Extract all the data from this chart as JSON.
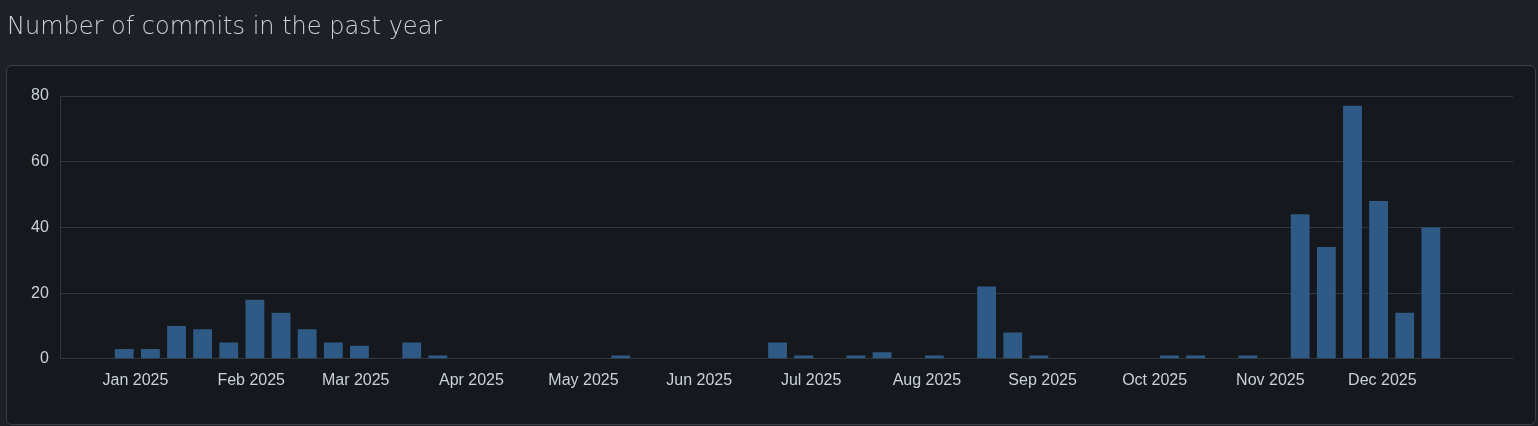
{
  "chart_data": {
    "type": "bar",
    "title": "Number of commits in the past year",
    "x": [
      "2024-12-29",
      "2025-01-05",
      "2025-01-12",
      "2025-01-19",
      "2025-01-26",
      "2025-02-02",
      "2025-02-09",
      "2025-02-16",
      "2025-02-23",
      "2025-03-02",
      "2025-03-09",
      "2025-03-16",
      "2025-03-23",
      "2025-03-30",
      "2025-04-06",
      "2025-04-13",
      "2025-04-20",
      "2025-04-27",
      "2025-05-04",
      "2025-05-11",
      "2025-05-18",
      "2025-05-25",
      "2025-06-01",
      "2025-06-08",
      "2025-06-15",
      "2025-06-22",
      "2025-06-29",
      "2025-07-06",
      "2025-07-13",
      "2025-07-20",
      "2025-07-27",
      "2025-08-03",
      "2025-08-10",
      "2025-08-17",
      "2025-08-24",
      "2025-08-31",
      "2025-09-07",
      "2025-09-14",
      "2025-09-21",
      "2025-09-28",
      "2025-10-05",
      "2025-10-12",
      "2025-10-19",
      "2025-10-26",
      "2025-11-02",
      "2025-11-09",
      "2025-11-16",
      "2025-11-23",
      "2025-11-30",
      "2025-12-07",
      "2025-12-14"
    ],
    "values": [
      3,
      3,
      10,
      9,
      5,
      18,
      14,
      9,
      5,
      4,
      0,
      5,
      1,
      0,
      0,
      0,
      0,
      0,
      0,
      1,
      0,
      0,
      0,
      0,
      0,
      5,
      1,
      0,
      1,
      2,
      0,
      1,
      0,
      22,
      8,
      1,
      0,
      0,
      0,
      0,
      1,
      1,
      0,
      1,
      0,
      44,
      34,
      77,
      48,
      14,
      40
    ],
    "color": "#2f5a85",
    "xlim": [
      "2024-12-12",
      "2026-01-05"
    ],
    "xticks": [
      {
        "value": "2025-01-01",
        "label": "Jan 2025"
      },
      {
        "value": "2025-02-01",
        "label": "Feb 2025"
      },
      {
        "value": "2025-03-01",
        "label": "Mar 2025"
      },
      {
        "value": "2025-04-01",
        "label": "Apr 2025"
      },
      {
        "value": "2025-05-01",
        "label": "May 2025"
      },
      {
        "value": "2025-06-01",
        "label": "Jun 2025"
      },
      {
        "value": "2025-07-01",
        "label": "Jul 2025"
      },
      {
        "value": "2025-08-01",
        "label": "Aug 2025"
      },
      {
        "value": "2025-09-01",
        "label": "Sep 2025"
      },
      {
        "value": "2025-10-01",
        "label": "Oct 2025"
      },
      {
        "value": "2025-11-01",
        "label": "Nov 2025"
      },
      {
        "value": "2025-12-01",
        "label": "Dec 2025"
      }
    ],
    "ylim": [
      0,
      80
    ],
    "yticks": [
      0,
      20,
      40,
      60,
      80
    ],
    "grid": "y"
  }
}
